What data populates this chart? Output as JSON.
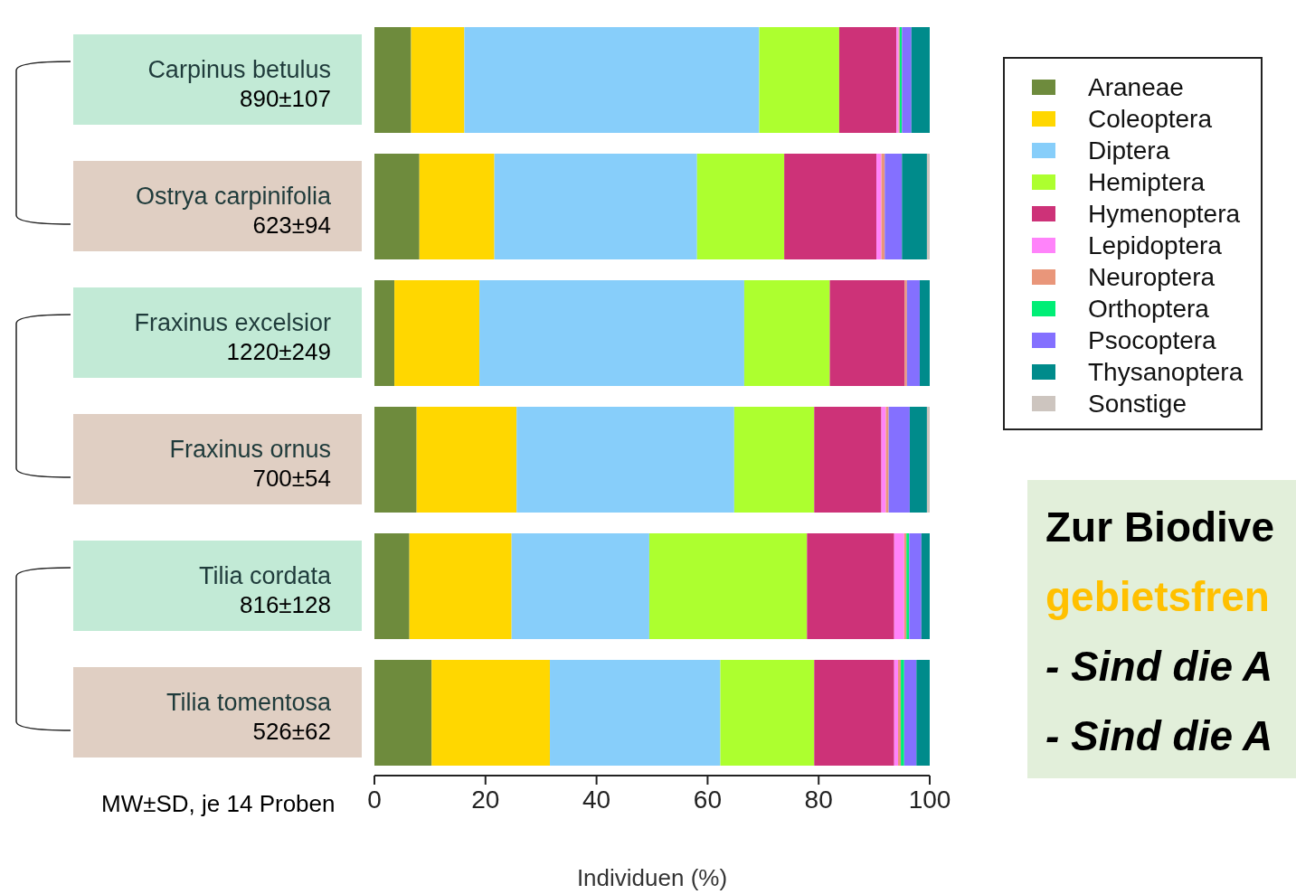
{
  "chart_data": {
    "type": "bar",
    "orientation": "horizontal",
    "stacked": true,
    "categories": [
      "Carpinus betulus\n890±107",
      "Ostrya carpinifolia\n623±94",
      "Fraxinus excelsior\n1220±249",
      "Fraxinus ornus\n700±54",
      "Tilia cordata\n816±128",
      "Tilia tomentosa\n526±62"
    ],
    "series": [
      {
        "name": "Araneae",
        "color": "#6e8b3d",
        "values": [
          6.6,
          8.1,
          3.6,
          7.6,
          6.3,
          10.3
        ]
      },
      {
        "name": "Coleoptera",
        "color": "#ffd700",
        "values": [
          9.6,
          13.5,
          15.3,
          18.0,
          18.4,
          21.3
        ]
      },
      {
        "name": "Diptera",
        "color": "#87cefa",
        "values": [
          53.1,
          36.5,
          47.7,
          39.2,
          24.8,
          30.7
        ]
      },
      {
        "name": "Hemiptera",
        "color": "#adff2f",
        "values": [
          14.4,
          15.7,
          15.4,
          14.4,
          28.4,
          16.9
        ]
      },
      {
        "name": "Hymenoptera",
        "color": "#cd3278",
        "values": [
          10.3,
          16.6,
          13.5,
          12.1,
          15.7,
          14.4
        ]
      },
      {
        "name": "Lepidoptera",
        "color": "#ff83fa",
        "values": [
          0.4,
          0.9,
          0,
          0.8,
          1.8,
          0.7
        ]
      },
      {
        "name": "Neuroptera",
        "color": "#e9967a",
        "values": [
          0.2,
          0.6,
          0.4,
          0.5,
          0.4,
          0.5
        ]
      },
      {
        "name": "Orthoptera",
        "color": "#00ee76",
        "values": [
          0.4,
          0,
          0,
          0,
          0.5,
          0.6
        ]
      },
      {
        "name": "Psocoptera",
        "color": "#8470ff",
        "values": [
          1.7,
          3.1,
          2.3,
          3.8,
          2.2,
          2.2
        ]
      },
      {
        "name": "Thysanoptera",
        "color": "#008b8b",
        "values": [
          3.3,
          4.5,
          1.8,
          3.1,
          1.5,
          2.4
        ]
      },
      {
        "name": "Sonstige",
        "color": "#cdc5bf",
        "values": [
          0,
          0.5,
          0,
          0.5,
          0,
          0
        ]
      }
    ],
    "xlim": [
      0,
      100
    ],
    "xticks": [
      0,
      20,
      40,
      60,
      80,
      100
    ],
    "xlabel": "Individuen (%)",
    "legend": "top right",
    "annotations": [
      "MW±SD, je 14 Proben",
      "Zur Biodive",
      "gebietsfren",
      "- Sind die A",
      "- Sind die A"
    ]
  }
}
